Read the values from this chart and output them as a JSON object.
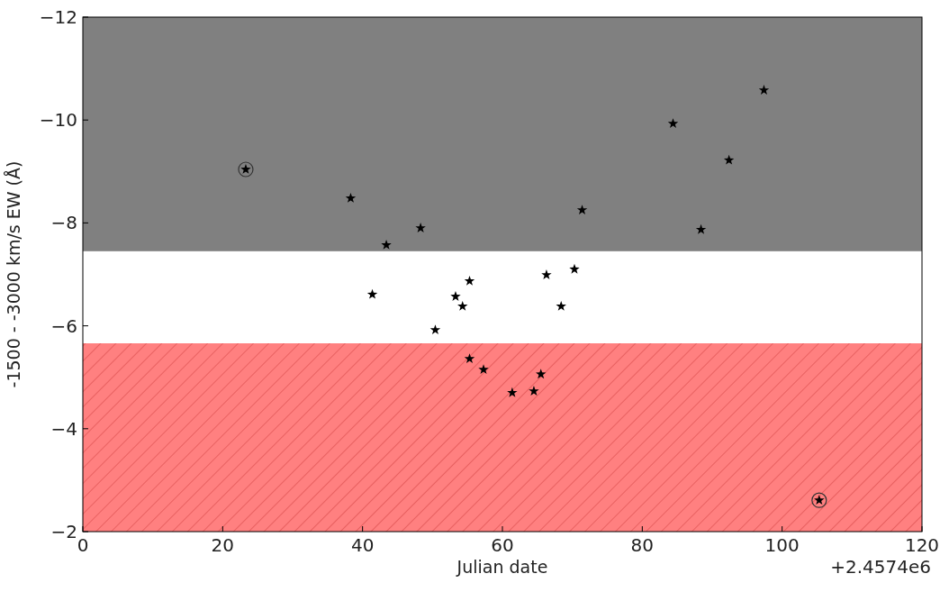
{
  "chart_data": {
    "type": "scatter",
    "xlabel": "Julian date",
    "ylabel": "-1500 - -3000 km/s EW (Å)",
    "annotations": [
      "+2.4574e6"
    ],
    "xlim": [
      0,
      120
    ],
    "ylim": [
      -2,
      -12
    ],
    "xticks": [
      0,
      20,
      40,
      60,
      80,
      100,
      120
    ],
    "yticks": [
      {
        "value": -12,
        "label": "−12"
      },
      {
        "value": -10,
        "label": "−10"
      },
      {
        "value": -8,
        "label": "−8"
      },
      {
        "value": -6,
        "label": "−6"
      },
      {
        "value": -4,
        "label": "−4"
      },
      {
        "value": -2,
        "label": "−2"
      }
    ],
    "grid": false,
    "bands": [
      {
        "axis": "y",
        "from": -12,
        "to": -7.45,
        "color": "#808080"
      },
      {
        "axis": "y",
        "from": -5.66,
        "to": -2,
        "color": "#ff8080"
      }
    ],
    "series": [
      {
        "marker": "star",
        "color": "#000000",
        "x": [
          23.3,
          38.3,
          43.4,
          48.3,
          71.4,
          84.4,
          88.4,
          92.4,
          97.4,
          41.4,
          53.3,
          55.3,
          54.3,
          50.4,
          66.3,
          70.3,
          68.4,
          55.3,
          57.3,
          61.4,
          64.5,
          65.5,
          105.3
        ],
        "values": [
          -9.04,
          -8.48,
          -7.57,
          -7.9,
          -8.25,
          -9.93,
          -7.87,
          -9.22,
          -10.58,
          -6.61,
          -6.57,
          -6.87,
          -6.38,
          -5.92,
          -6.99,
          -7.1,
          -6.38,
          -5.36,
          -5.15,
          -4.7,
          -4.73,
          -5.06,
          -2.61
        ]
      },
      {
        "marker": "circle",
        "color": "#333333",
        "x": [
          23.3,
          105.3
        ],
        "values": [
          -9.04,
          -2.61
        ]
      }
    ]
  }
}
